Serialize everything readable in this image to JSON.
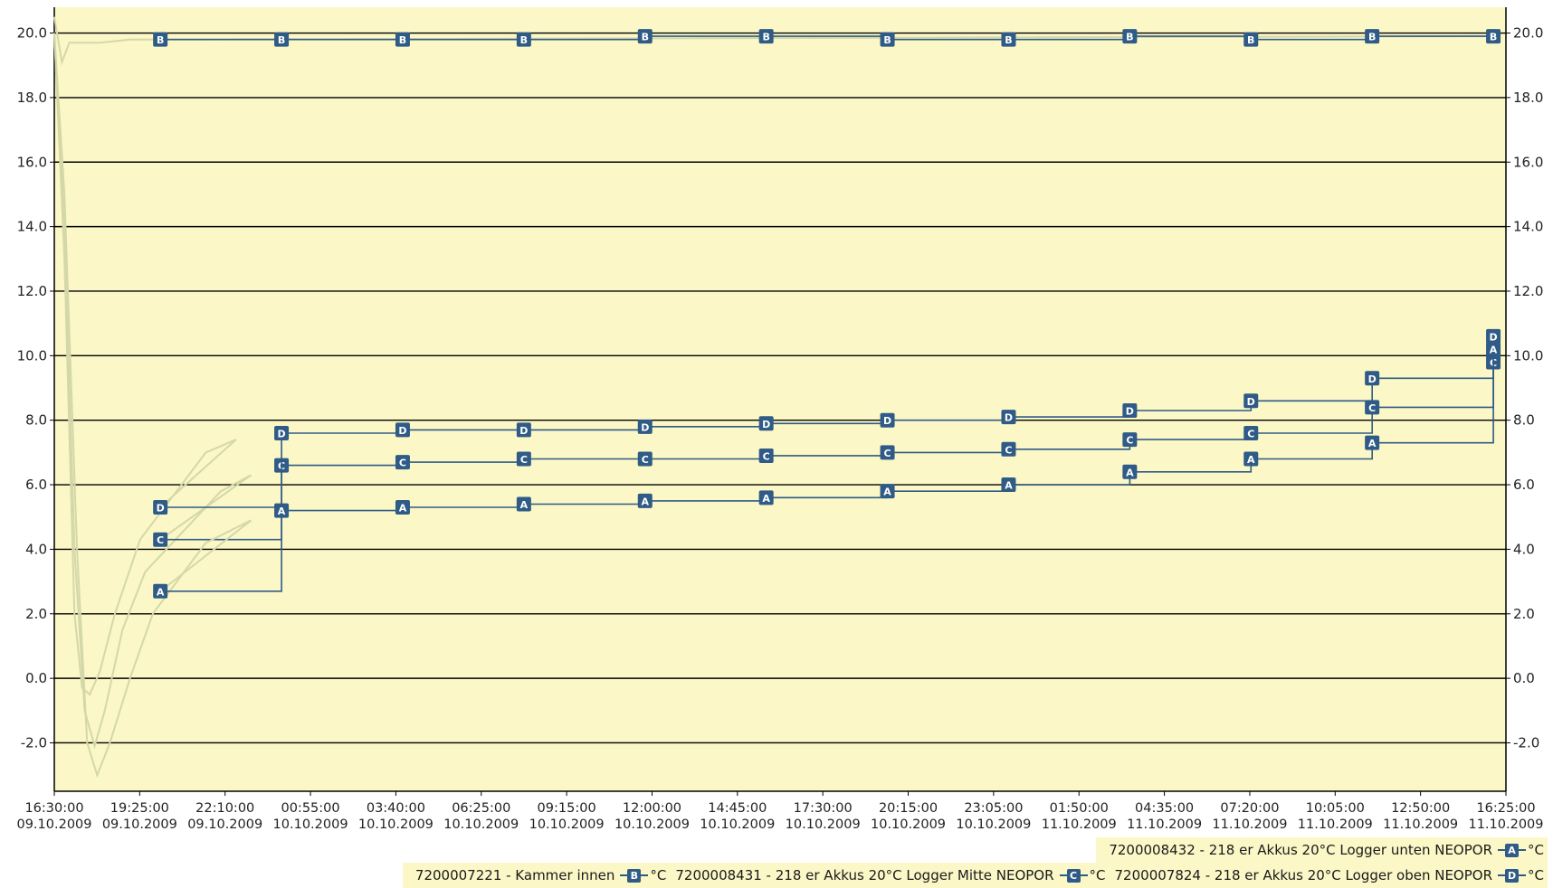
{
  "chart_data": {
    "type": "line",
    "title": "",
    "xlabel": "",
    "ylabel": "",
    "ylim": [
      -3.5,
      20.8
    ],
    "y_ticks": [
      -2.0,
      0.0,
      2.0,
      4.0,
      6.0,
      8.0,
      10.0,
      12.0,
      14.0,
      16.0,
      18.0,
      20.0
    ],
    "y_tick_labels": [
      "-2.0",
      "0.0",
      "2.0",
      "4.0",
      "6.0",
      "8.0",
      "10.0",
      "12.0",
      "14.0",
      "16.0",
      "18.0",
      "20.0"
    ],
    "x_tick_labels": [
      {
        "time": "16:30:00",
        "date": "09.10.2009"
      },
      {
        "time": "19:25:00",
        "date": "09.10.2009"
      },
      {
        "time": "22:10:00",
        "date": "09.10.2009"
      },
      {
        "time": "00:55:00",
        "date": "10.10.2009"
      },
      {
        "time": "03:40:00",
        "date": "10.10.2009"
      },
      {
        "time": "06:25:00",
        "date": "10.10.2009"
      },
      {
        "time": "09:15:00",
        "date": "10.10.2009"
      },
      {
        "time": "12:00:00",
        "date": "10.10.2009"
      },
      {
        "time": "14:45:00",
        "date": "10.10.2009"
      },
      {
        "time": "17:30:00",
        "date": "10.10.2009"
      },
      {
        "time": "20:15:00",
        "date": "10.10.2009"
      },
      {
        "time": "23:05:00",
        "date": "10.10.2009"
      },
      {
        "time": "01:50:00",
        "date": "11.10.2009"
      },
      {
        "time": "04:35:00",
        "date": "11.10.2009"
      },
      {
        "time": "07:20:00",
        "date": "11.10.2009"
      },
      {
        "time": "10:05:00",
        "date": "11.10.2009"
      },
      {
        "time": "12:50:00",
        "date": "11.10.2009"
      },
      {
        "time": "16:25:00",
        "date": "11.10.2009"
      }
    ],
    "marker_x": [
      "09.10.2009 20:00",
      "10.10.2009 00:00",
      "10.10.2009 04:00",
      "10.10.2009 08:00",
      "10.10.2009 12:00",
      "10.10.2009 16:00",
      "10.10.2009 20:00",
      "11.10.2009 00:00",
      "11.10.2009 04:00",
      "11.10.2009 08:00",
      "11.10.2009 12:00",
      "11.10.2009 16:00"
    ],
    "grid": true,
    "legend_position": "bottom-right",
    "colors": {
      "background": "#fbf7c7",
      "line": "#2f5b86",
      "marker": "#2f5b86",
      "early_line": "#d4d8a8",
      "grid": "#000000"
    },
    "series": [
      {
        "name": "7200007221 - Kammer innen",
        "marker": "B",
        "unit": "°C",
        "curve": [
          [
            "09.10.2009 16:30",
            20.5
          ],
          [
            "09.10.2009 16:45",
            19.1
          ],
          [
            "09.10.2009 17:00",
            19.7
          ],
          [
            "09.10.2009 18:00",
            19.7
          ],
          [
            "09.10.2009 19:00",
            19.8
          ],
          [
            "11.10.2009 16:00",
            19.9
          ]
        ],
        "values": [
          19.8,
          19.8,
          19.8,
          19.8,
          19.9,
          19.9,
          19.8,
          19.8,
          19.9,
          19.8,
          19.9,
          19.9
        ]
      },
      {
        "name": "7200008431 - 218 er Akkus 20°C Logger Mitte NEOPOR",
        "marker": "C",
        "unit": "°C",
        "curve": [
          [
            "09.10.2009 16:30",
            20.0
          ],
          [
            "09.10.2009 16:50",
            14.0
          ],
          [
            "09.10.2009 17:10",
            4.0
          ],
          [
            "09.10.2009 17:30",
            -1.0
          ],
          [
            "09.10.2009 17:50",
            -2.1
          ],
          [
            "09.10.2009 18:10",
            -1.0
          ],
          [
            "09.10.2009 18:45",
            1.5
          ],
          [
            "09.10.2009 19:30",
            3.3
          ],
          [
            "09.10.2009 22:00",
            5.8
          ],
          [
            "09.10.2009 23:00",
            6.3
          ]
        ],
        "values": [
          4.3,
          6.6,
          6.7,
          6.8,
          6.8,
          6.9,
          7.0,
          7.1,
          7.4,
          7.6,
          8.4,
          9.8
        ]
      },
      {
        "name": "7200007824 - 218 er Akkus 20°C Logger oben NEOPOR",
        "marker": "D",
        "unit": "°C",
        "curve": [
          [
            "09.10.2009 16:30",
            20.0
          ],
          [
            "09.10.2009 16:50",
            13.0
          ],
          [
            "09.10.2009 17:10",
            2.0
          ],
          [
            "09.10.2009 17:25",
            -0.3
          ],
          [
            "09.10.2009 17:40",
            -0.5
          ],
          [
            "09.10.2009 18:00",
            0.2
          ],
          [
            "09.10.2009 18:30",
            2.0
          ],
          [
            "09.10.2009 19:20",
            4.3
          ],
          [
            "09.10.2009 21:30",
            7.0
          ],
          [
            "09.10.2009 22:30",
            7.4
          ]
        ],
        "values": [
          5.3,
          7.6,
          7.7,
          7.7,
          7.8,
          7.9,
          8.0,
          8.1,
          8.3,
          8.6,
          9.3,
          10.6
        ]
      },
      {
        "name": "7200008432 - 218 er Akkus 20°C Logger unten NEOPOR",
        "marker": "A",
        "unit": "°C",
        "curve": [
          [
            "09.10.2009 16:30",
            20.0
          ],
          [
            "09.10.2009 16:50",
            15.0
          ],
          [
            "09.10.2009 17:15",
            4.0
          ],
          [
            "09.10.2009 17:35",
            -2.0
          ],
          [
            "09.10.2009 17:55",
            -3.0
          ],
          [
            "09.10.2009 18:20",
            -2.0
          ],
          [
            "09.10.2009 19:00",
            0.0
          ],
          [
            "09.10.2009 19:45",
            2.0
          ],
          [
            "09.10.2009 21:30",
            4.2
          ],
          [
            "09.10.2009 23:00",
            4.9
          ]
        ],
        "values": [
          2.7,
          5.2,
          5.3,
          5.4,
          5.5,
          5.6,
          5.8,
          6.0,
          6.4,
          6.8,
          7.3,
          10.2
        ]
      }
    ]
  }
}
